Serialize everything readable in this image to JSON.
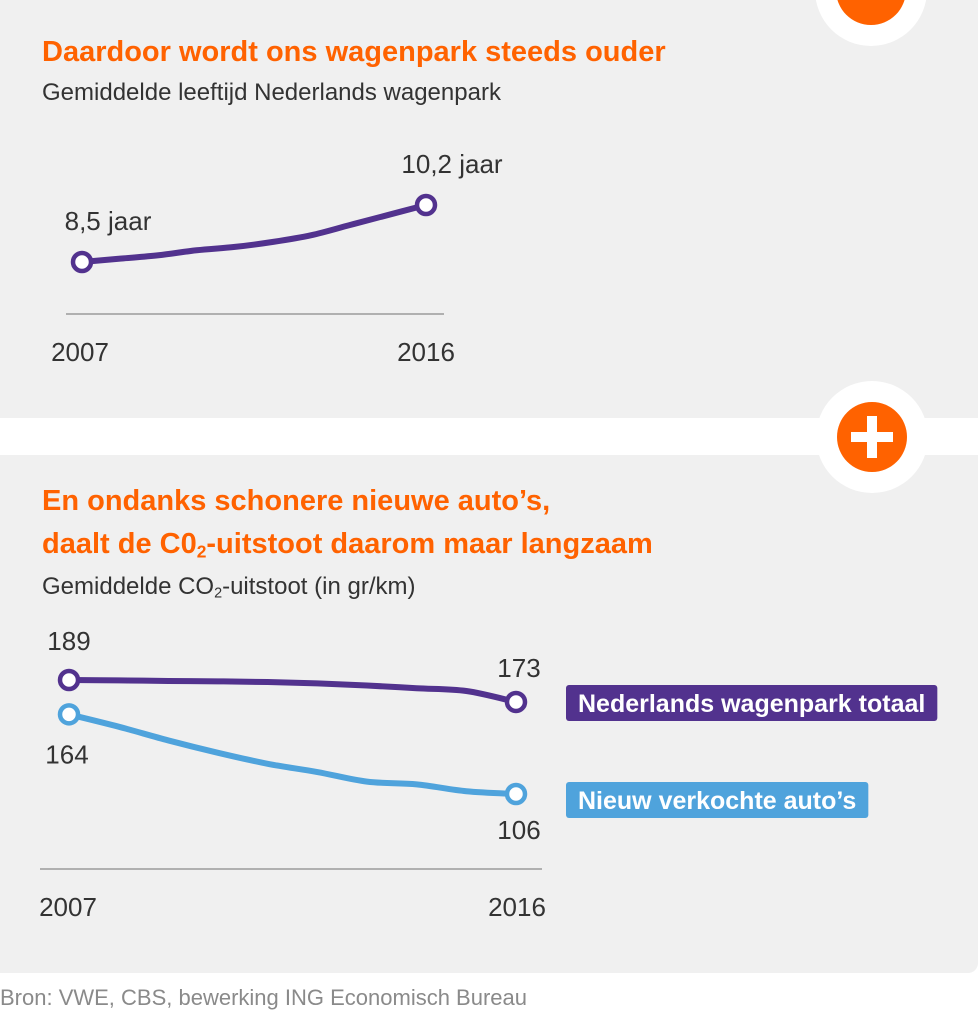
{
  "colors": {
    "accent_orange": "#ff6200",
    "purple": "#52328e",
    "light_blue": "#4fa3dc",
    "axis_grey": "#9a9a9a",
    "text_dark": "#333333",
    "source_grey": "#8a8a8a"
  },
  "icons": {
    "top_badge": "chevron-down-icon",
    "middle_badge": "plus-icon"
  },
  "source": "Bron: VWE, CBS, bewerking ING Economisch Bureau",
  "chart_data": [
    {
      "type": "line",
      "title": "Daardoor wordt ons wagenpark steeds ouder",
      "subtitle": "Gemiddelde leeftijd Nederlands wagenpark",
      "x_tick_labels": [
        "2007",
        "2016"
      ],
      "xlim": [
        2007,
        2016
      ],
      "ylim": [
        8,
        11
      ],
      "grid": false,
      "series": [
        {
          "x": [
            2007,
            2008,
            2009,
            2010,
            2011,
            2012,
            2013,
            2014,
            2015,
            2016
          ],
          "values": [
            8.5,
            8.6,
            8.7,
            8.85,
            8.95,
            9.1,
            9.3,
            9.6,
            9.9,
            10.2
          ],
          "data_labels": [
            {
              "x": 2007,
              "text": "8,5 jaar"
            },
            {
              "x": 2016,
              "text": "10,2 jaar"
            }
          ]
        }
      ]
    },
    {
      "type": "line",
      "title_line1": "En ondanks schonere nieuwe auto’s,",
      "title_line2_prefix": "daalt de C0",
      "title_line2_sub": "2",
      "title_line2_suffix": "-uitstoot daarom maar langzaam",
      "subtitle_prefix": "Gemiddelde CO",
      "subtitle_sub": "2",
      "subtitle_suffix": "-uitstoot (in gr/km)",
      "x_tick_labels": [
        "2007",
        "2016"
      ],
      "xlim": [
        2007,
        2016
      ],
      "ylim": [
        95,
        200
      ],
      "grid": false,
      "legend_placement": "right",
      "series": [
        {
          "name": "Nederlands wagenpark totaal",
          "x": [
            2007,
            2008,
            2009,
            2010,
            2011,
            2012,
            2013,
            2014,
            2015,
            2016
          ],
          "values": [
            189,
            188.7,
            188.3,
            188,
            187.5,
            186.5,
            185,
            183,
            181,
            173
          ],
          "data_labels": [
            {
              "x": 2007,
              "text": "189"
            },
            {
              "x": 2016,
              "text": "173"
            }
          ]
        },
        {
          "name": "Nieuw verkochte auto’s",
          "x": [
            2007,
            2008,
            2009,
            2010,
            2011,
            2012,
            2013,
            2014,
            2015,
            2016
          ],
          "values": [
            164,
            155,
            145,
            136,
            128,
            122,
            115,
            113,
            108,
            106
          ],
          "data_labels": [
            {
              "x": 2007,
              "text": "164"
            },
            {
              "x": 2016,
              "text": "106"
            }
          ]
        }
      ]
    }
  ]
}
